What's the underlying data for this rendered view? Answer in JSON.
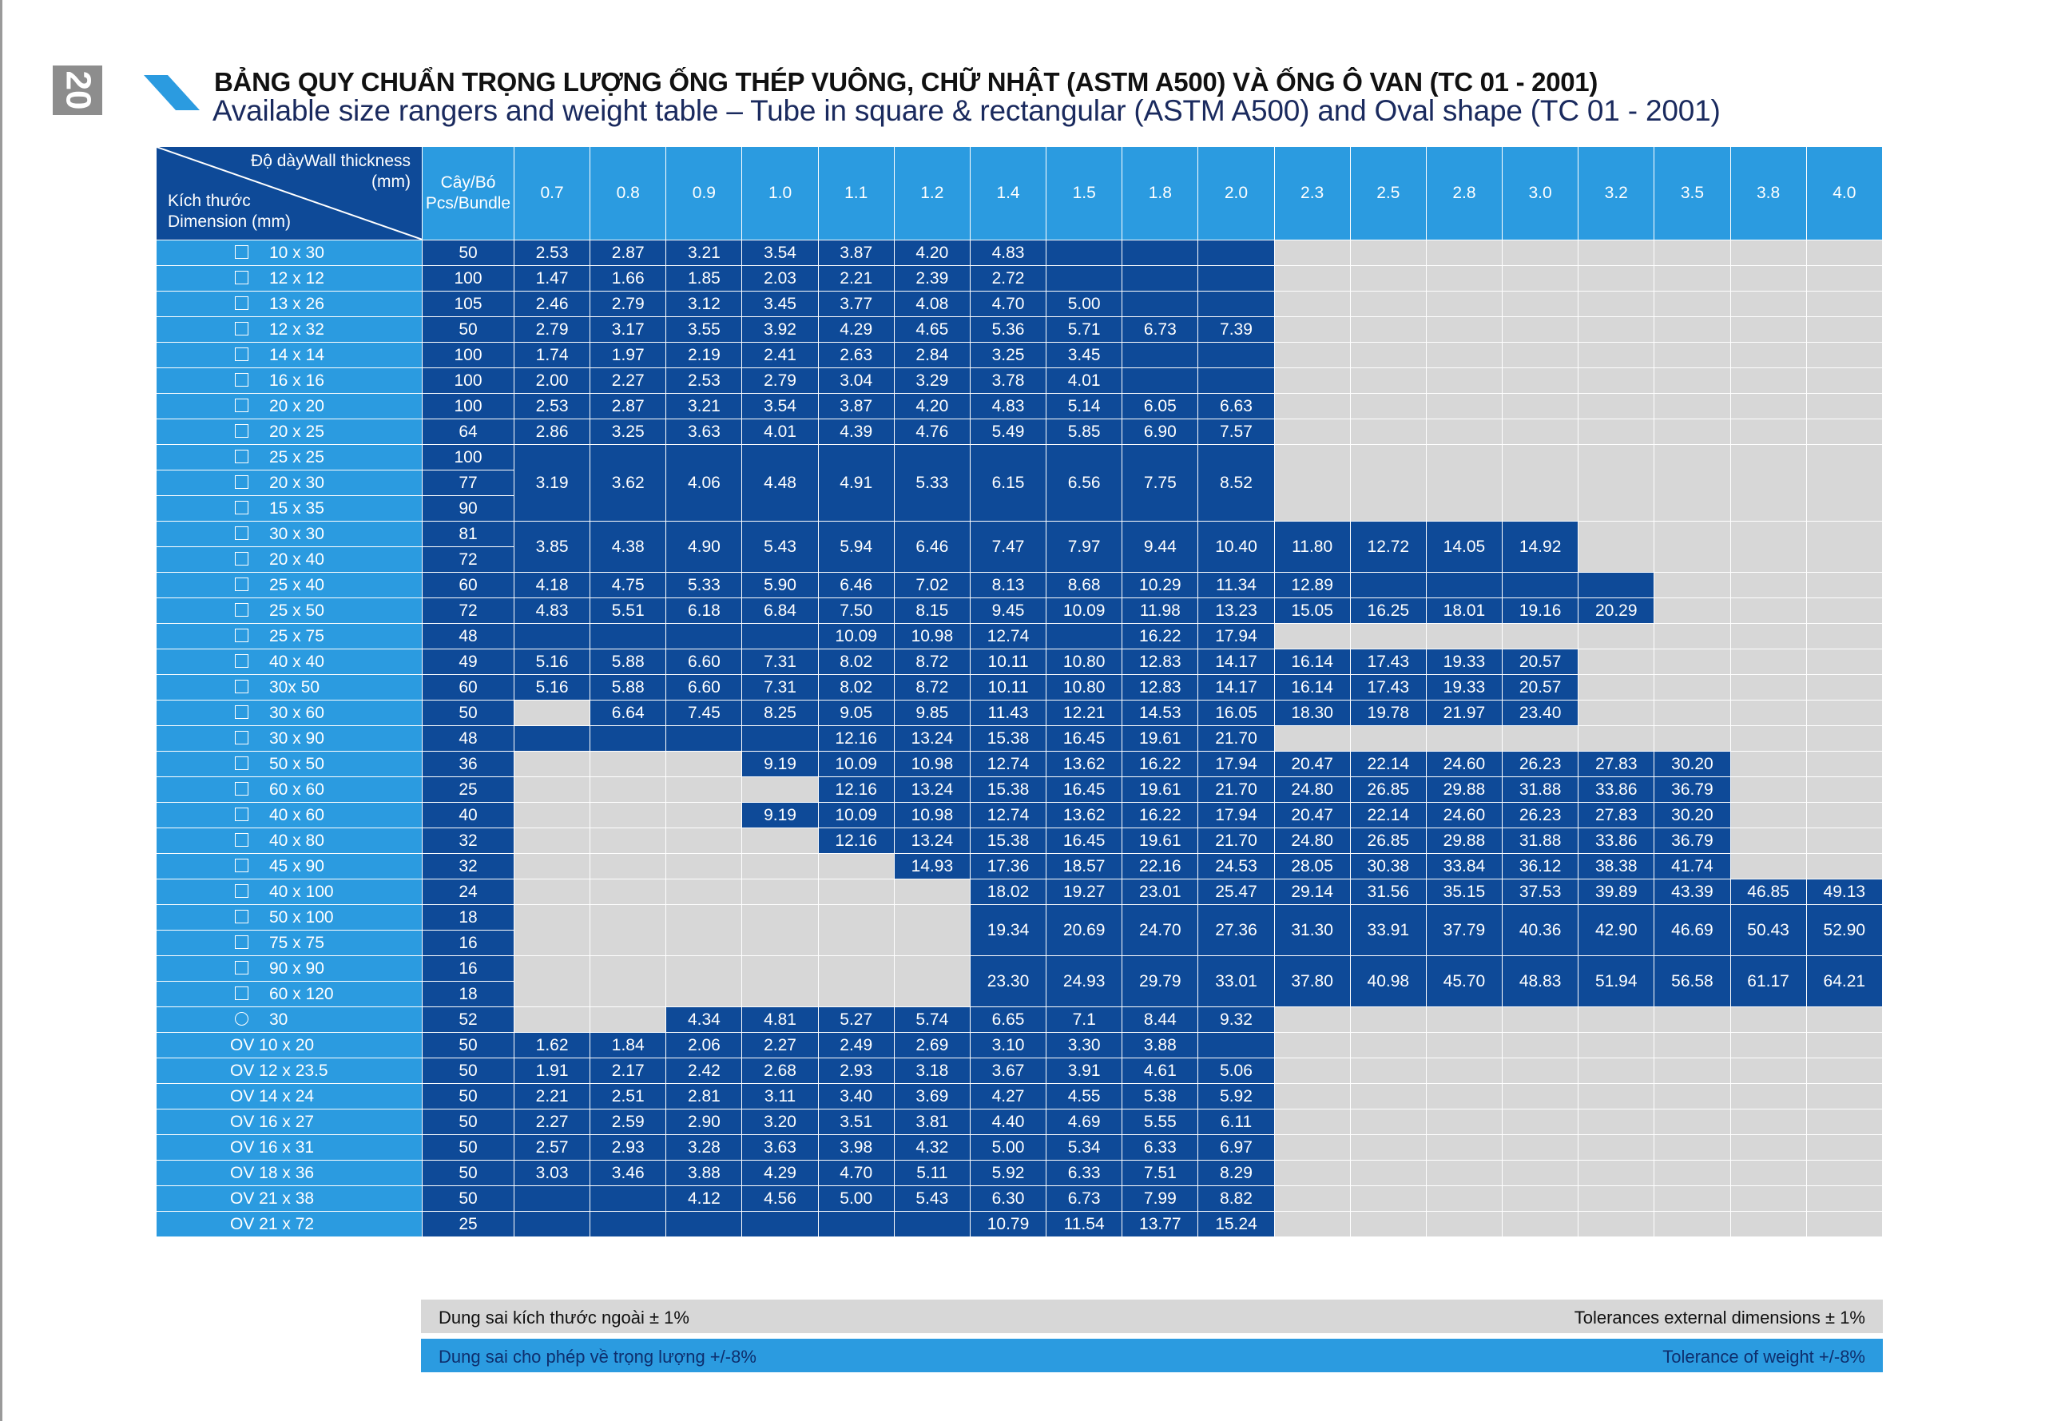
{
  "page_number": "20",
  "title": "BẢNG QUY CHUẨN TRỌNG LƯỢNG ỐNG THÉP VUÔNG, CHỮ NHẬT (ASTM A500) VÀ ỐNG Ô VAN (TC 01 - 2001)",
  "subtitle": "Available size rangers and weight table – Tube in square & rectangular (ASTM A500) and Oval shape (TC 01 - 2001)",
  "header": {
    "thickness_line1": "Độ dàyWall thickness",
    "thickness_line2": "(mm)",
    "dimension_line1": "Kích thước",
    "dimension_line2": "Dimension (mm)",
    "pcs_line1": "Cây/Bó",
    "pcs_line2": "Pcs/Bundle",
    "thicknesses": [
      "0.7",
      "0.8",
      "0.9",
      "1.0",
      "1.1",
      "1.2",
      "1.4",
      "1.5",
      "1.8",
      "2.0",
      "2.3",
      "2.5",
      "2.8",
      "3.0",
      "3.2",
      "3.5",
      "3.8",
      "4.0"
    ]
  },
  "rows": [
    {
      "dims": [
        {
          "shape": "sq",
          "label": "10 x 30"
        }
      ],
      "pcs": [
        "50"
      ],
      "cells": [
        "2.53",
        "2.87",
        "3.21",
        "3.54",
        "3.87",
        "4.20",
        "4.83",
        "",
        "",
        "",
        "",
        "",
        "",
        "",
        "",
        "",
        "",
        ""
      ],
      "shade": "DDDDDDDDDDGGGGGGGG"
    },
    {
      "dims": [
        {
          "shape": "sq",
          "label": "12 x 12"
        }
      ],
      "pcs": [
        "100"
      ],
      "cells": [
        "1.47",
        "1.66",
        "1.85",
        "2.03",
        "2.21",
        "2.39",
        "2.72",
        "",
        "",
        "",
        "",
        "",
        "",
        "",
        "",
        "",
        "",
        ""
      ],
      "shade": "DDDDDDDDDDGGGGGGGG"
    },
    {
      "dims": [
        {
          "shape": "sq",
          "label": "13 x 26"
        }
      ],
      "pcs": [
        "105"
      ],
      "cells": [
        "2.46",
        "2.79",
        "3.12",
        "3.45",
        "3.77",
        "4.08",
        "4.70",
        "5.00",
        "",
        "",
        "",
        "",
        "",
        "",
        "",
        "",
        "",
        ""
      ],
      "shade": "DDDDDDDDDDGGGGGGGG"
    },
    {
      "dims": [
        {
          "shape": "sq",
          "label": "12 x 32"
        }
      ],
      "pcs": [
        "50"
      ],
      "cells": [
        "2.79",
        "3.17",
        "3.55",
        "3.92",
        "4.29",
        "4.65",
        "5.36",
        "5.71",
        "6.73",
        "7.39",
        "",
        "",
        "",
        "",
        "",
        "",
        "",
        ""
      ],
      "shade": "DDDDDDDDDDGGGGGGGG"
    },
    {
      "dims": [
        {
          "shape": "sq",
          "label": "14 x 14"
        }
      ],
      "pcs": [
        "100"
      ],
      "cells": [
        "1.74",
        "1.97",
        "2.19",
        "2.41",
        "2.63",
        "2.84",
        "3.25",
        "3.45",
        "",
        "",
        "",
        "",
        "",
        "",
        "",
        "",
        "",
        ""
      ],
      "shade": "DDDDDDDDDDGGGGGGGG"
    },
    {
      "dims": [
        {
          "shape": "sq",
          "label": "16 x 16"
        }
      ],
      "pcs": [
        "100"
      ],
      "cells": [
        "2.00",
        "2.27",
        "2.53",
        "2.79",
        "3.04",
        "3.29",
        "3.78",
        "4.01",
        "",
        "",
        "",
        "",
        "",
        "",
        "",
        "",
        "",
        ""
      ],
      "shade": "DDDDDDDDDDGGGGGGGG"
    },
    {
      "dims": [
        {
          "shape": "sq",
          "label": "20 x 20"
        }
      ],
      "pcs": [
        "100"
      ],
      "cells": [
        "2.53",
        "2.87",
        "3.21",
        "3.54",
        "3.87",
        "4.20",
        "4.83",
        "5.14",
        "6.05",
        "6.63",
        "",
        "",
        "",
        "",
        "",
        "",
        "",
        ""
      ],
      "shade": "DDDDDDDDDDGGGGGGGG"
    },
    {
      "dims": [
        {
          "shape": "sq",
          "label": "20 x 25"
        }
      ],
      "pcs": [
        "64"
      ],
      "cells": [
        "2.86",
        "3.25",
        "3.63",
        "4.01",
        "4.39",
        "4.76",
        "5.49",
        "5.85",
        "6.90",
        "7.57",
        "",
        "",
        "",
        "",
        "",
        "",
        "",
        ""
      ],
      "shade": "DDDDDDDDDDGGGGGGGG"
    },
    {
      "dims": [
        {
          "shape": "sq",
          "label": "25 x 25"
        },
        {
          "shape": "sq",
          "label": "20 x 30"
        },
        {
          "shape": "sq",
          "label": "15 x 35"
        }
      ],
      "pcs": [
        "100",
        "77",
        "90"
      ],
      "cells": [
        "3.19",
        "3.62",
        "4.06",
        "4.48",
        "4.91",
        "5.33",
        "6.15",
        "6.56",
        "7.75",
        "8.52",
        "",
        "",
        "",
        "",
        "",
        "",
        "",
        ""
      ],
      "shade": "DDDDDDDDDDGGGGGGGG"
    },
    {
      "dims": [
        {
          "shape": "sq",
          "label": "30 x 30"
        },
        {
          "shape": "sq",
          "label": "20 x 40"
        }
      ],
      "pcs": [
        "81",
        "72"
      ],
      "cells": [
        "3.85",
        "4.38",
        "4.90",
        "5.43",
        "5.94",
        "6.46",
        "7.47",
        "7.97",
        "9.44",
        "10.40",
        "11.80",
        "12.72",
        "14.05",
        "14.92",
        "",
        "",
        "",
        ""
      ],
      "shade": "DDDDDDDDDDDDDDGGGG"
    },
    {
      "dims": [
        {
          "shape": "sq",
          "label": "25 x 40"
        }
      ],
      "pcs": [
        "60"
      ],
      "cells": [
        "4.18",
        "4.75",
        "5.33",
        "5.90",
        "6.46",
        "7.02",
        "8.13",
        "8.68",
        "10.29",
        "11.34",
        "12.89",
        "",
        "",
        "",
        "",
        "",
        "",
        ""
      ],
      "shade": "DDDDDDDDDDDDDDDGGG"
    },
    {
      "dims": [
        {
          "shape": "sq",
          "label": "25 x 50"
        }
      ],
      "pcs": [
        "72"
      ],
      "cells": [
        "4.83",
        "5.51",
        "6.18",
        "6.84",
        "7.50",
        "8.15",
        "9.45",
        "10.09",
        "11.98",
        "13.23",
        "15.05",
        "16.25",
        "18.01",
        "19.16",
        "20.29",
        "",
        "",
        ""
      ],
      "shade": "DDDDDDDDDDDDDDDGGG"
    },
    {
      "dims": [
        {
          "shape": "sq",
          "label": "25 x 75"
        }
      ],
      "pcs": [
        "48"
      ],
      "cells": [
        "",
        "",
        "",
        "",
        "10.09",
        "10.98",
        "12.74",
        "",
        "16.22",
        "17.94",
        "",
        "",
        "",
        "",
        "",
        "",
        "",
        ""
      ],
      "shade": "DDDDDDDDDDGGGGGGGG"
    },
    {
      "dims": [
        {
          "shape": "sq",
          "label": "40 x 40"
        }
      ],
      "pcs": [
        "49"
      ],
      "cells": [
        "5.16",
        "5.88",
        "6.60",
        "7.31",
        "8.02",
        "8.72",
        "10.11",
        "10.80",
        "12.83",
        "14.17",
        "16.14",
        "17.43",
        "19.33",
        "20.57",
        "",
        "",
        "",
        ""
      ],
      "shade": "DDDDDDDDDDDDDDGGGG"
    },
    {
      "dims": [
        {
          "shape": "sq",
          "label": "30x 50"
        }
      ],
      "pcs": [
        "60"
      ],
      "cells": [
        "5.16",
        "5.88",
        "6.60",
        "7.31",
        "8.02",
        "8.72",
        "10.11",
        "10.80",
        "12.83",
        "14.17",
        "16.14",
        "17.43",
        "19.33",
        "20.57",
        "",
        "",
        "",
        ""
      ],
      "shade": "DDDDDDDDDDDDDDGGGG"
    },
    {
      "dims": [
        {
          "shape": "sq",
          "label": "30 x 60"
        }
      ],
      "pcs": [
        "50"
      ],
      "cells": [
        "",
        "6.64",
        "7.45",
        "8.25",
        "9.05",
        "9.85",
        "11.43",
        "12.21",
        "14.53",
        "16.05",
        "18.30",
        "19.78",
        "21.97",
        "23.40",
        "",
        "",
        "",
        ""
      ],
      "shade": "GDDDDDDDDDDDDDGGGG"
    },
    {
      "dims": [
        {
          "shape": "sq",
          "label": "30 x 90"
        }
      ],
      "pcs": [
        "48"
      ],
      "cells": [
        "",
        "",
        "",
        "",
        "12.16",
        "13.24",
        "15.38",
        "16.45",
        "19.61",
        "21.70",
        "",
        "",
        "",
        "",
        "",
        "",
        "",
        ""
      ],
      "shade": "DDDDDDDDDDGGGGGGGG"
    },
    {
      "dims": [
        {
          "shape": "sq",
          "label": "50 x 50"
        }
      ],
      "pcs": [
        "36"
      ],
      "cells": [
        "",
        "",
        "",
        "9.19",
        "10.09",
        "10.98",
        "12.74",
        "13.62",
        "16.22",
        "17.94",
        "20.47",
        "22.14",
        "24.60",
        "26.23",
        "27.83",
        "30.20",
        "",
        ""
      ],
      "shade": "GGGDDDDDDDDDDDDDGG"
    },
    {
      "dims": [
        {
          "shape": "sq",
          "label": "60 x 60"
        }
      ],
      "pcs": [
        "25"
      ],
      "cells": [
        "",
        "",
        "",
        "",
        "12.16",
        "13.24",
        "15.38",
        "16.45",
        "19.61",
        "21.70",
        "24.80",
        "26.85",
        "29.88",
        "31.88",
        "33.86",
        "36.79",
        "",
        ""
      ],
      "shade": "GGGGDDDDDDDDDDDDGG"
    },
    {
      "dims": [
        {
          "shape": "sq",
          "label": "40 x 60"
        }
      ],
      "pcs": [
        "40"
      ],
      "cells": [
        "",
        "",
        "",
        "9.19",
        "10.09",
        "10.98",
        "12.74",
        "13.62",
        "16.22",
        "17.94",
        "20.47",
        "22.14",
        "24.60",
        "26.23",
        "27.83",
        "30.20",
        "",
        ""
      ],
      "shade": "GGGDDDDDDDDDDDDDGG"
    },
    {
      "dims": [
        {
          "shape": "sq",
          "label": "40 x 80"
        }
      ],
      "pcs": [
        "32"
      ],
      "cells": [
        "",
        "",
        "",
        "",
        "12.16",
        "13.24",
        "15.38",
        "16.45",
        "19.61",
        "21.70",
        "24.80",
        "26.85",
        "29.88",
        "31.88",
        "33.86",
        "36.79",
        "",
        ""
      ],
      "shade": "GGGGDDDDDDDDDDDDGG"
    },
    {
      "dims": [
        {
          "shape": "sq",
          "label": "45 x 90"
        }
      ],
      "pcs": [
        "32"
      ],
      "cells": [
        "",
        "",
        "",
        "",
        "",
        "14.93",
        "17.36",
        "18.57",
        "22.16",
        "24.53",
        "28.05",
        "30.38",
        "33.84",
        "36.12",
        "38.38",
        "41.74",
        "",
        ""
      ],
      "shade": "GGGGGDDDDDDDDDDDGG"
    },
    {
      "dims": [
        {
          "shape": "sq",
          "label": "40 x 100"
        }
      ],
      "pcs": [
        "24"
      ],
      "cells": [
        "",
        "",
        "",
        "",
        "",
        "",
        "18.02",
        "19.27",
        "23.01",
        "25.47",
        "29.14",
        "31.56",
        "35.15",
        "37.53",
        "39.89",
        "43.39",
        "46.85",
        "49.13"
      ],
      "shade": "GGGGGGDDDDDDDDDDDD"
    },
    {
      "dims": [
        {
          "shape": "sq",
          "label": "50 x 100"
        },
        {
          "shape": "sq",
          "label": "75 x 75"
        }
      ],
      "pcs": [
        "18",
        "16"
      ],
      "cells": [
        "",
        "",
        "",
        "",
        "",
        "",
        "19.34",
        "20.69",
        "24.70",
        "27.36",
        "31.30",
        "33.91",
        "37.79",
        "40.36",
        "42.90",
        "46.69",
        "50.43",
        "52.90"
      ],
      "shade": "GGGGGGDDDDDDDDDDDD"
    },
    {
      "dims": [
        {
          "shape": "sq",
          "label": "90 x 90"
        },
        {
          "shape": "sq",
          "label": "60 x 120"
        }
      ],
      "pcs": [
        "16",
        "18"
      ],
      "cells": [
        "",
        "",
        "",
        "",
        "",
        "",
        "23.30",
        "24.93",
        "29.79",
        "33.01",
        "37.80",
        "40.98",
        "45.70",
        "48.83",
        "51.94",
        "56.58",
        "61.17",
        "64.21"
      ],
      "shade": "GGGGGGDDDDDDDDDDDD"
    },
    {
      "dims": [
        {
          "shape": "ci",
          "label": "30"
        }
      ],
      "pcs": [
        "52"
      ],
      "cells": [
        "",
        "",
        "4.34",
        "4.81",
        "5.27",
        "5.74",
        "6.65",
        "7.1",
        "8.44",
        "9.32",
        "",
        "",
        "",
        "",
        "",
        "",
        "",
        ""
      ],
      "shade": "GGDDDDDDDDGGGGGGGG"
    },
    {
      "dims": [
        {
          "shape": "ov",
          "label": "OV 10 x 20"
        }
      ],
      "pcs": [
        "50"
      ],
      "cells": [
        "1.62",
        "1.84",
        "2.06",
        "2.27",
        "2.49",
        "2.69",
        "3.10",
        "3.30",
        "3.88",
        "",
        "",
        "",
        "",
        "",
        "",
        "",
        "",
        ""
      ],
      "shade": "DDDDDDDDDDGGGGGGGG"
    },
    {
      "dims": [
        {
          "shape": "ov",
          "label": "OV 12 x 23.5"
        }
      ],
      "pcs": [
        "50"
      ],
      "cells": [
        "1.91",
        "2.17",
        "2.42",
        "2.68",
        "2.93",
        "3.18",
        "3.67",
        "3.91",
        "4.61",
        "5.06",
        "",
        "",
        "",
        "",
        "",
        "",
        "",
        ""
      ],
      "shade": "DDDDDDDDDDGGGGGGGG"
    },
    {
      "dims": [
        {
          "shape": "ov",
          "label": "OV 14 x 24"
        }
      ],
      "pcs": [
        "50"
      ],
      "cells": [
        "2.21",
        "2.51",
        "2.81",
        "3.11",
        "3.40",
        "3.69",
        "4.27",
        "4.55",
        "5.38",
        "5.92",
        "",
        "",
        "",
        "",
        "",
        "",
        "",
        ""
      ],
      "shade": "DDDDDDDDDDGGGGGGGG"
    },
    {
      "dims": [
        {
          "shape": "ov",
          "label": "OV 16 x 27"
        }
      ],
      "pcs": [
        "50"
      ],
      "cells": [
        "2.27",
        "2.59",
        "2.90",
        "3.20",
        "3.51",
        "3.81",
        "4.40",
        "4.69",
        "5.55",
        "6.11",
        "",
        "",
        "",
        "",
        "",
        "",
        "",
        ""
      ],
      "shade": "DDDDDDDDDDGGGGGGGG"
    },
    {
      "dims": [
        {
          "shape": "ov",
          "label": "OV 16 x 31"
        }
      ],
      "pcs": [
        "50"
      ],
      "cells": [
        "2.57",
        "2.93",
        "3.28",
        "3.63",
        "3.98",
        "4.32",
        "5.00",
        "5.34",
        "6.33",
        "6.97",
        "",
        "",
        "",
        "",
        "",
        "",
        "",
        ""
      ],
      "shade": "DDDDDDDDDDGGGGGGGG"
    },
    {
      "dims": [
        {
          "shape": "ov",
          "label": "OV 18 x 36"
        }
      ],
      "pcs": [
        "50"
      ],
      "cells": [
        "3.03",
        "3.46",
        "3.88",
        "4.29",
        "4.70",
        "5.11",
        "5.92",
        "6.33",
        "7.51",
        "8.29",
        "",
        "",
        "",
        "",
        "",
        "",
        "",
        ""
      ],
      "shade": "DDDDDDDDDDGGGGGGGG"
    },
    {
      "dims": [
        {
          "shape": "ov",
          "label": "OV 21 x 38"
        }
      ],
      "pcs": [
        "50"
      ],
      "cells": [
        "",
        "",
        "4.12",
        "4.56",
        "5.00",
        "5.43",
        "6.30",
        "6.73",
        "7.99",
        "8.82",
        "",
        "",
        "",
        "",
        "",
        "",
        "",
        ""
      ],
      "shade": "DDDDDDDDDDGGGGGGGG"
    },
    {
      "dims": [
        {
          "shape": "ov",
          "label": "OV 21 x 72"
        }
      ],
      "pcs": [
        "25"
      ],
      "cells": [
        "",
        "",
        "",
        "",
        "",
        "",
        "10.79",
        "11.54",
        "13.77",
        "15.24",
        "",
        "",
        "",
        "",
        "",
        "",
        "",
        ""
      ],
      "shade": "DDDDDDDDDDGGGGGGGG"
    }
  ],
  "tolerance": {
    "dim_vi": "Dung sai kích thước ngoài ± 1%",
    "dim_en": "Tolerances external dimensions ± 1%",
    "weight_vi": "Dung sai cho phép về trọng lượng +/-8%",
    "weight_en": "Tolerance of weight +/-8%"
  },
  "colors": {
    "dark_blue": "#0e4a98",
    "light_blue": "#2b9be0",
    "gray": "#d7d7d7"
  }
}
